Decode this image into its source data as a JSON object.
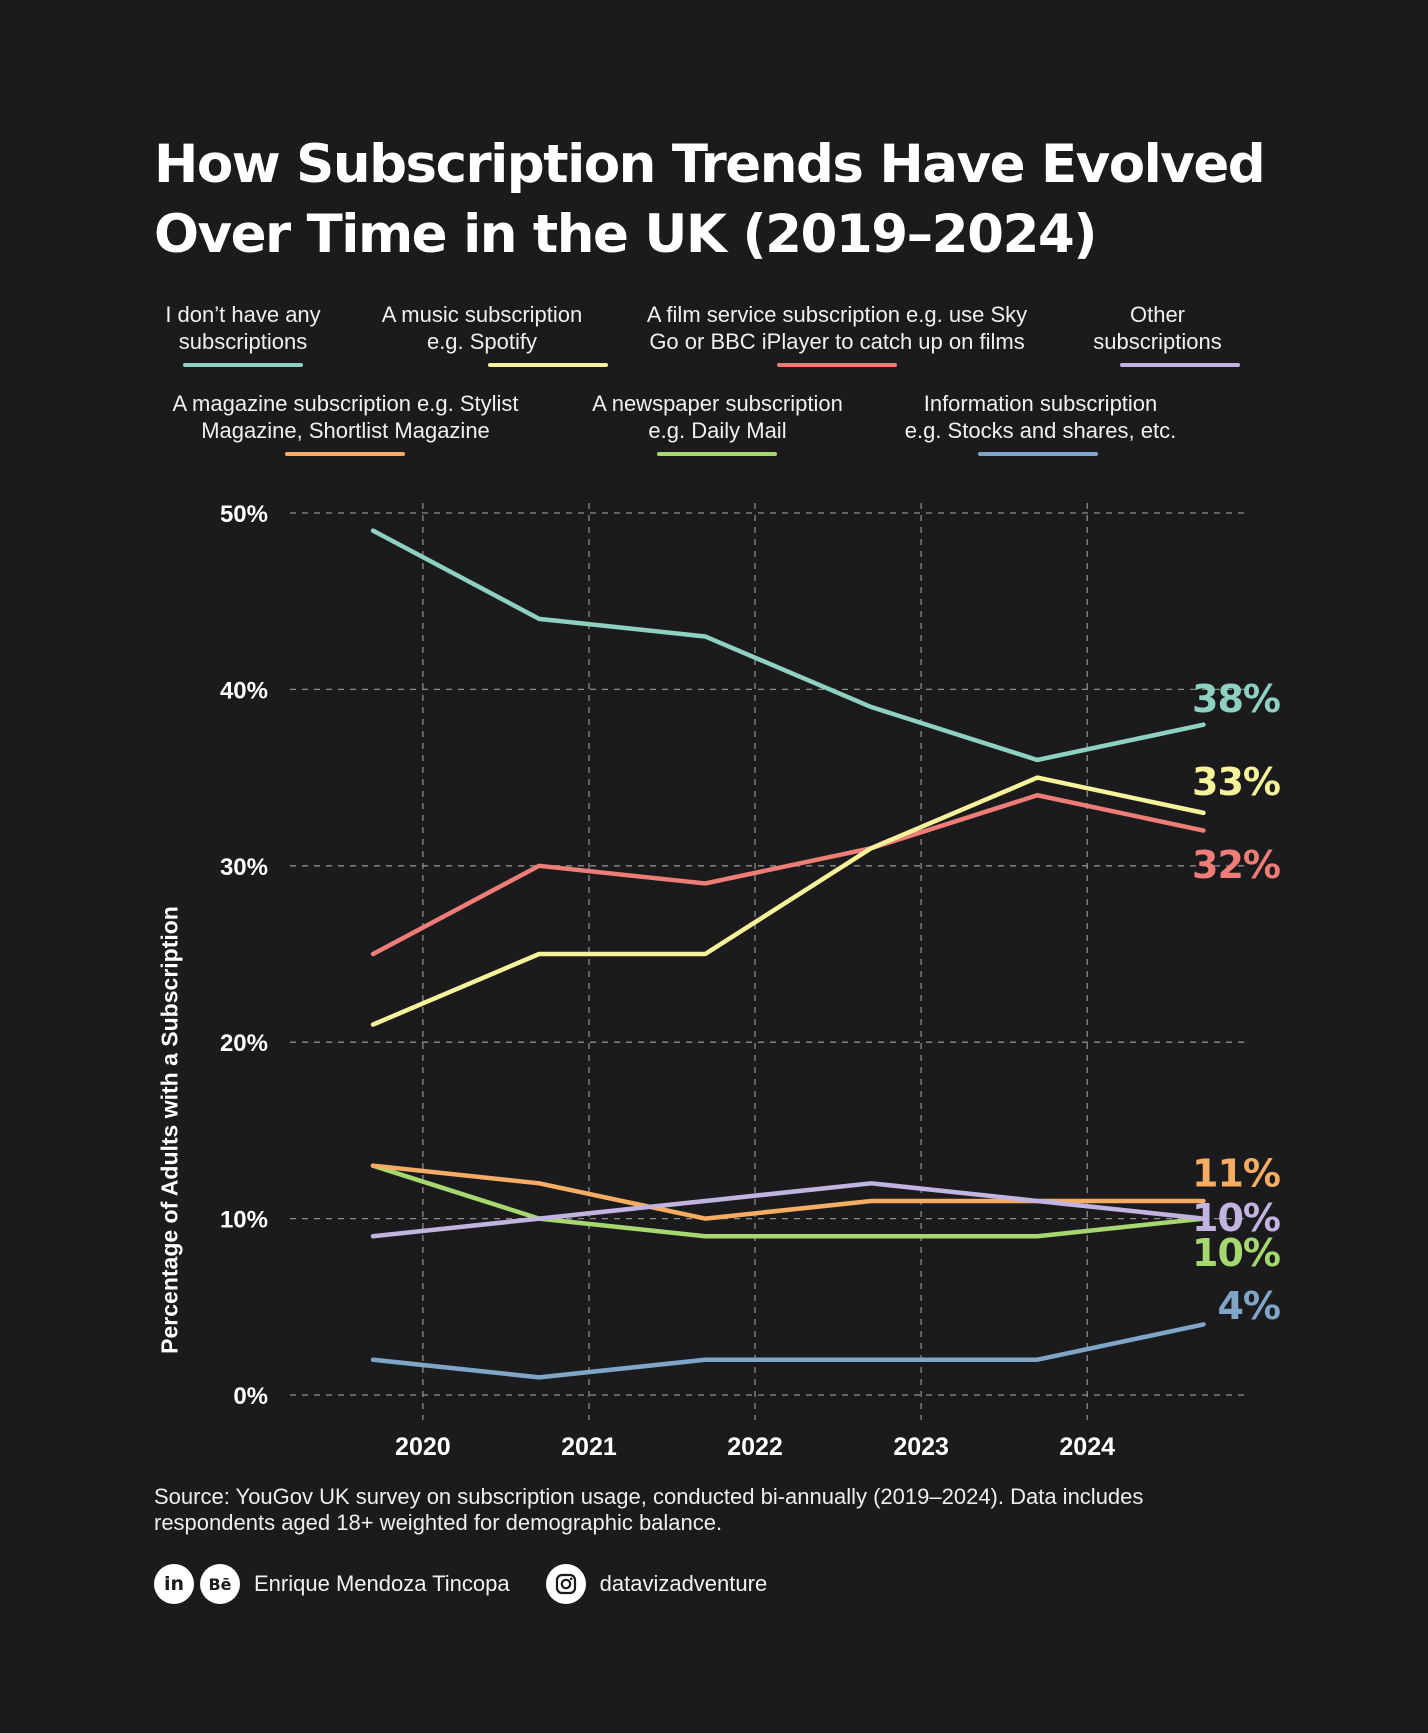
{
  "title": {
    "line1": "How Subscription Trends Have Evolved",
    "line2": "Over Time in the UK (2019–2024)"
  },
  "chart_data": {
    "type": "line",
    "x": [
      2019.7,
      2020.7,
      2021.7,
      2022.7,
      2023.7,
      2024.7
    ],
    "xticks": [
      2020,
      2021,
      2022,
      2023,
      2024
    ],
    "xticklabels": [
      "2020",
      "2021",
      "2022",
      "2023",
      "2024"
    ],
    "yticks": [
      0,
      10,
      20,
      30,
      40,
      50
    ],
    "yticklabels": [
      "0%",
      "10%",
      "20%",
      "30%",
      "40%",
      "50%"
    ],
    "ylim": [
      0,
      50
    ],
    "xlim": [
      2019.2,
      2024.95
    ],
    "ylabel": "Percentage of Adults with a Subscription",
    "xlabel": "",
    "grid": true,
    "series": [
      {
        "name": "I don’t have any subscriptions",
        "legend_lines": [
          "I don’t have any",
          "subscriptions"
        ],
        "color": "#8fd1bf",
        "values": [
          49,
          44,
          43,
          39,
          36,
          38
        ],
        "end_label": "38%",
        "label_value": 39.5
      },
      {
        "name": "A music subscription e.g. Spotify",
        "legend_lines": [
          "A music subscription",
          "e.g. Spotify"
        ],
        "color": "#f7f39b",
        "values": [
          21,
          25,
          25,
          31,
          35,
          33
        ],
        "end_label": "33%",
        "label_value": 34.8
      },
      {
        "name": "A film service subscription e.g. use Sky Go or BBC iPlayer to catch up on films",
        "legend_lines": [
          "A film service subscription e.g. use Sky",
          "Go or BBC iPlayer to catch up on films"
        ],
        "color": "#ef7d77",
        "values": [
          25,
          30,
          29,
          31,
          34,
          32
        ],
        "end_label": "32%",
        "label_value": 30.1
      },
      {
        "name": "Other subscriptions",
        "legend_lines": [
          "Other",
          "subscriptions"
        ],
        "color": "#c2b4e0",
        "values": [
          9,
          10,
          11,
          12,
          11,
          10
        ],
        "end_label": "10%",
        "label_value": 10.1
      },
      {
        "name": "A magazine subscription e.g. Stylist Magazine, Shortlist Magazine",
        "legend_lines": [
          "A magazine subscription e.g. Stylist",
          "Magazine, Shortlist Magazine"
        ],
        "color": "#f6ad63",
        "values": [
          13,
          12,
          10,
          11,
          11,
          11
        ],
        "end_label": "11%",
        "label_value": 12.6
      },
      {
        "name": "A newspaper subscription e.g. Daily Mail",
        "legend_lines": [
          "A newspaper subscription",
          "e.g. Daily Mail"
        ],
        "color": "#a6d86f",
        "values": [
          13,
          10,
          9,
          9,
          9,
          10
        ],
        "end_label": "10%",
        "label_value": 8.1
      },
      {
        "name": "Information subscription e.g. Stocks and shares, etc.",
        "legend_lines": [
          "Information subscription",
          "e.g. Stocks and shares, etc."
        ],
        "color": "#7fa6c9",
        "values": [
          2,
          1,
          2,
          2,
          2,
          4
        ],
        "end_label": "4%",
        "label_value": 5.1
      }
    ]
  },
  "source": {
    "line1": "Source: YouGov UK survey on subscription usage, conducted bi-annually (2019–2024). Data includes",
    "line2": "respondents aged 18+ weighted for demographic balance."
  },
  "footer": {
    "linkedin_glyph": "in",
    "behance_glyph": "Bē",
    "author": "Enrique Mendoza Tincopa",
    "instagram_handle": "datavizadventure"
  }
}
